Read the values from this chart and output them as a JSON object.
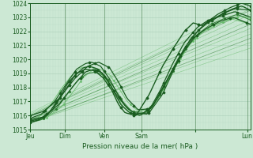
{
  "title": "Pression niveau de la mer( hPa )",
  "bg_color": "#cce8d4",
  "grid_major_color": "#aacfb8",
  "grid_minor_color": "#bbdbc6",
  "line_dark": "#1a5c20",
  "line_med": "#2e7d32",
  "line_light": "#66bb6a",
  "ylim": [
    1015,
    1024
  ],
  "yticks": [
    1015,
    1016,
    1017,
    1018,
    1019,
    1020,
    1021,
    1022,
    1023,
    1024
  ],
  "xtick_labels": [
    "Jeu",
    "Dim",
    "Ven",
    "Sam",
    "",
    "Lun"
  ],
  "xtick_pos": [
    0.0,
    0.155,
    0.335,
    0.505,
    0.75,
    0.985
  ],
  "tick_fontsize": 5.5,
  "xlabel_fontsize": 6.5,
  "n_points": 120
}
